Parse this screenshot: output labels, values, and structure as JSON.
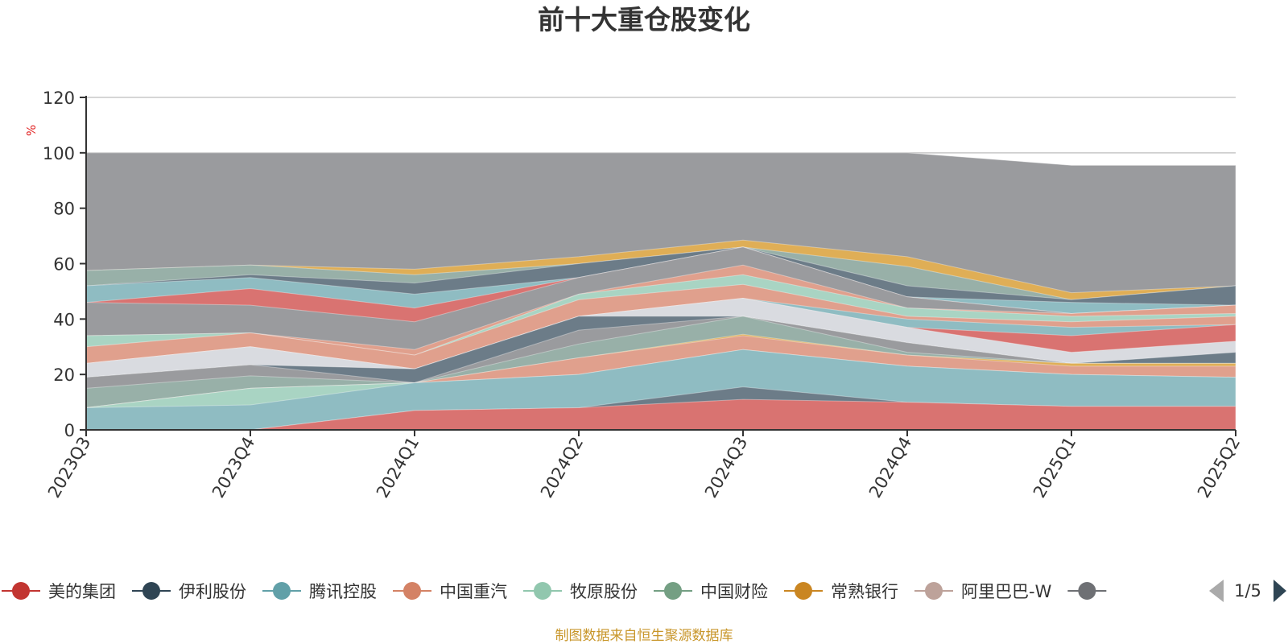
{
  "chart_data": {
    "type": "area",
    "title": "前十大重仓股变化",
    "ylabel": "%",
    "ylim": [
      0,
      120
    ],
    "yticks": [
      0,
      20,
      40,
      60,
      80,
      100,
      120
    ],
    "categories": [
      "2023Q3",
      "2023Q4",
      "2024Q1",
      "2024Q2",
      "2024Q3",
      "2024Q4",
      "2025Q1",
      "2025Q2"
    ],
    "stacked_boundaries": [
      {
        "color": "#9a9b9e",
        "values": [
          100,
          100,
          100,
          100,
          100,
          100,
          95.5,
          95.5
        ]
      },
      {
        "color": "#dfae56",
        "values": [
          57.5,
          59.5,
          58,
          62.5,
          68.5,
          62.5,
          49.5,
          52
        ]
      },
      {
        "color": "#98b0a8",
        "values": [
          57.5,
          59.5,
          56,
          60,
          66,
          59,
          47,
          52
        ]
      },
      {
        "color": "#6c7c88",
        "values": [
          52,
          56,
          53,
          60,
          66,
          52,
          47,
          52
        ]
      },
      {
        "color": "#8fbcc2",
        "values": [
          52,
          55,
          49,
          55,
          66,
          48,
          46,
          45
        ]
      },
      {
        "color": "#d97371",
        "values": [
          46,
          51,
          44,
          55,
          66,
          48,
          42,
          45
        ]
      },
      {
        "color": "#9a9b9e",
        "values": [
          46,
          45,
          39,
          55,
          66,
          48,
          42,
          45
        ]
      },
      {
        "color": "#e0a08d",
        "values": [
          34,
          35,
          29,
          49,
          59.5,
          44,
          42,
          45
        ]
      },
      {
        "color": "#a9d4c3",
        "values": [
          34,
          35,
          27,
          49,
          56,
          44,
          41,
          42
        ]
      },
      {
        "color": "#e0a08d",
        "values": [
          30,
          35,
          27,
          47,
          52.5,
          41,
          39,
          41
        ]
      },
      {
        "color": "#8fbcc2",
        "values": [
          24,
          30,
          22,
          41,
          47.5,
          40,
          37,
          38
        ]
      },
      {
        "color": "#d97371",
        "values": [
          24,
          30,
          22,
          41,
          47.5,
          37,
          34,
          38
        ]
      },
      {
        "color": "#d9dbe0",
        "values": [
          24,
          30,
          22,
          41,
          47.5,
          37,
          28,
          32
        ]
      },
      {
        "color": "#6c7c88",
        "values": [
          19,
          23.5,
          22,
          41,
          41,
          31.5,
          24,
          28
        ]
      },
      {
        "color": "#9a9b9e",
        "values": [
          19,
          23.5,
          17,
          36,
          41,
          31.5,
          24,
          24
        ]
      },
      {
        "color": "#98b0a8",
        "values": [
          15,
          19.5,
          17,
          31,
          41,
          28,
          24,
          24
        ]
      },
      {
        "color": "#dfae56",
        "values": [
          8,
          15,
          17,
          26,
          34.5,
          27,
          24,
          24
        ]
      },
      {
        "color": "#e0a08d",
        "values": [
          8,
          15,
          17,
          26,
          34,
          27,
          23,
          23
        ]
      },
      {
        "color": "#a9d4c3",
        "values": [
          8,
          15,
          17,
          20,
          29,
          23,
          20,
          19
        ]
      },
      {
        "color": "#8fbcc2",
        "values": [
          8,
          9,
          17,
          20,
          29,
          23,
          20,
          19
        ]
      },
      {
        "color": "#6c7c88",
        "values": [
          0,
          0,
          7,
          8,
          15.5,
          10,
          8.5,
          8.5
        ]
      },
      {
        "color": "#d97371",
        "values": [
          0,
          0,
          7,
          8,
          11,
          10,
          8.5,
          8.5
        ]
      }
    ],
    "legend": {
      "placement": "bottom",
      "page": "1/5",
      "items": [
        {
          "name": "美的集团",
          "color": "#c23531"
        },
        {
          "name": "伊利股份",
          "color": "#2f4554"
        },
        {
          "name": "腾讯控股",
          "color": "#61a0a8"
        },
        {
          "name": "中国重汽",
          "color": "#d48265"
        },
        {
          "name": "牧原股份",
          "color": "#91c7ae"
        },
        {
          "name": "中国财险",
          "color": "#749f83"
        },
        {
          "name": "常熟银行",
          "color": "#ca8622"
        },
        {
          "name": "阿里巴巴-W",
          "color": "#bda29a"
        },
        {
          "name": "",
          "color": "#6e7074"
        }
      ]
    },
    "grid": true
  },
  "footer": {
    "source": "制图数据来自恒生聚源数据库"
  }
}
